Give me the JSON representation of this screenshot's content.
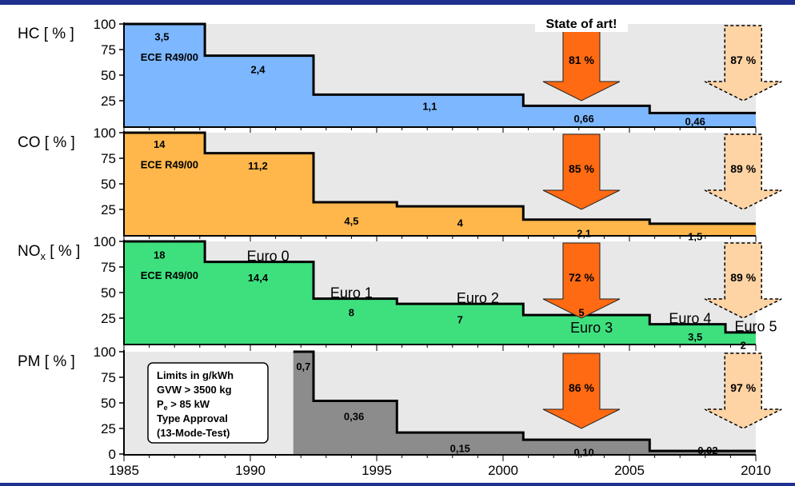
{
  "chart_data": {
    "type": "step-area",
    "x_axis": {
      "min": 1985,
      "max": 2010,
      "ticks": [
        1985,
        1990,
        1995,
        2000,
        2005,
        2010
      ]
    },
    "y_axis": {
      "min": 0,
      "max": 100
    },
    "legend_box": [
      "Limits in g/kWh",
      "GVW > 3500 kg",
      "Pe > 85 kW",
      "Type Approval",
      "(13-Mode-Test)"
    ],
    "state_of_art_label": "State of art!",
    "colors": {
      "hc": "#7db7ff",
      "co": "#ffb74c",
      "nox": "#3ee07e",
      "pm": "#8c8c8c",
      "arrow": "#ff6a12",
      "arrow_future": "#ffd4a5",
      "background": "#e8e8e8"
    },
    "panels": [
      {
        "id": "hc",
        "label_main": "HC",
        "label_sub": "",
        "label_unit": "[ % ]",
        "y_ticks": [
          100,
          75,
          50,
          25
        ],
        "steps": [
          [
            1985,
            100
          ],
          [
            1988.2,
            69
          ],
          [
            1992.5,
            31
          ],
          [
            2000.8,
            20
          ],
          [
            2005.8,
            13
          ]
        ],
        "values": [
          {
            "text": "3,5",
            "x": 1986.5,
            "y": 88
          },
          {
            "text": "ECE R49/00",
            "x": 1986.8,
            "y": 68
          },
          {
            "text": "2,4",
            "x": 1990.3,
            "y": 56
          },
          {
            "text": "1,1",
            "x": 1997.1,
            "y": 20
          },
          {
            "text": "0,66",
            "x": 2003.2,
            "y": 8
          },
          {
            "text": "0,46",
            "x": 2007.6,
            "y": 5
          }
        ],
        "arrows": [
          {
            "x": 2003.1,
            "label": "81 %",
            "type": "current"
          },
          {
            "x": 2009.5,
            "label": "87 %",
            "type": "future"
          }
        ],
        "euro_labels": []
      },
      {
        "id": "co",
        "label_main": "CO",
        "label_sub": "",
        "label_unit": "[ % ]",
        "y_ticks": [
          100,
          75,
          50,
          25
        ],
        "steps": [
          [
            1985,
            100
          ],
          [
            1988.2,
            80
          ],
          [
            1992.5,
            32
          ],
          [
            1995.8,
            28
          ],
          [
            2000.8,
            15
          ],
          [
            2005.8,
            11
          ]
        ],
        "values": [
          {
            "text": "14",
            "x": 1986.4,
            "y": 89
          },
          {
            "text": "ECE R49/00",
            "x": 1986.8,
            "y": 69
          },
          {
            "text": "11,2",
            "x": 1990.3,
            "y": 68
          },
          {
            "text": "4,5",
            "x": 1994.0,
            "y": 14
          },
          {
            "text": "4",
            "x": 1998.3,
            "y": 12
          },
          {
            "text": "2,1",
            "x": 2003.2,
            "y": 2
          },
          {
            "text": "1,5",
            "x": 2007.6,
            "y": -1
          }
        ],
        "arrows": [
          {
            "x": 2003.1,
            "label": "85 %",
            "type": "current"
          },
          {
            "x": 2009.5,
            "label": "89 %",
            "type": "future"
          }
        ],
        "euro_labels": []
      },
      {
        "id": "nox",
        "label_main": "NO",
        "label_sub": "x",
        "label_unit": "[ % ]",
        "y_ticks": [
          100,
          75,
          50,
          25
        ],
        "steps": [
          [
            1985,
            100
          ],
          [
            1988.2,
            80
          ],
          [
            1992.5,
            44
          ],
          [
            1995.8,
            39
          ],
          [
            2000.8,
            28
          ],
          [
            2005.8,
            19
          ],
          [
            2008.8,
            11
          ]
        ],
        "values": [
          {
            "text": "18",
            "x": 1986.4,
            "y": 87
          },
          {
            "text": "ECE R49/00",
            "x": 1986.8,
            "y": 67
          },
          {
            "text": "14,4",
            "x": 1990.3,
            "y": 65
          },
          {
            "text": "8",
            "x": 1994.0,
            "y": 31
          },
          {
            "text": "7",
            "x": 1998.3,
            "y": 24
          },
          {
            "text": "5",
            "x": 2003.1,
            "y": 31
          },
          {
            "text": "3,5",
            "x": 2007.6,
            "y": 7
          },
          {
            "text": "2",
            "x": 2009.5,
            "y": -1
          }
        ],
        "arrows": [
          {
            "x": 2003.1,
            "label": "72 %",
            "type": "current"
          },
          {
            "x": 2009.5,
            "label": "89 %",
            "type": "future"
          }
        ],
        "euro_labels": [
          {
            "text": "Euro 0",
            "x": 1990.7,
            "y": 81
          },
          {
            "text": "Euro 1",
            "x": 1994.0,
            "y": 45
          },
          {
            "text": "Euro 2",
            "x": 1999.0,
            "y": 40
          },
          {
            "text": "Euro 3",
            "x": 2003.5,
            "y": 11
          },
          {
            "text": "Euro 4",
            "x": 2007.4,
            "y": 20
          },
          {
            "text": "Euro 5",
            "x": 2010.0,
            "y": 12
          }
        ]
      },
      {
        "id": "pm",
        "label_main": "PM",
        "label_sub": "",
        "label_unit": "[ % ]",
        "y_ticks": [
          100,
          75,
          50,
          25,
          0
        ],
        "start_year": 1991.7,
        "steps": [
          [
            1991.7,
            100
          ],
          [
            1992.5,
            52
          ],
          [
            1995.8,
            21
          ],
          [
            2000.8,
            14
          ],
          [
            2005.8,
            3
          ]
        ],
        "values": [
          {
            "text": "0,7",
            "x": 1992.1,
            "y": 86
          },
          {
            "text": "0,36",
            "x": 1994.1,
            "y": 37
          },
          {
            "text": "0,15",
            "x": 1998.3,
            "y": 6
          },
          {
            "text": "0,10",
            "x": 2003.2,
            "y": 2
          },
          {
            "text": "0,02",
            "x": 2008.1,
            "y": 4
          }
        ],
        "arrows": [
          {
            "x": 2003.1,
            "label": "86 %",
            "type": "current"
          },
          {
            "x": 2009.5,
            "label": "97 %",
            "type": "future"
          }
        ],
        "euro_labels": []
      }
    ]
  }
}
